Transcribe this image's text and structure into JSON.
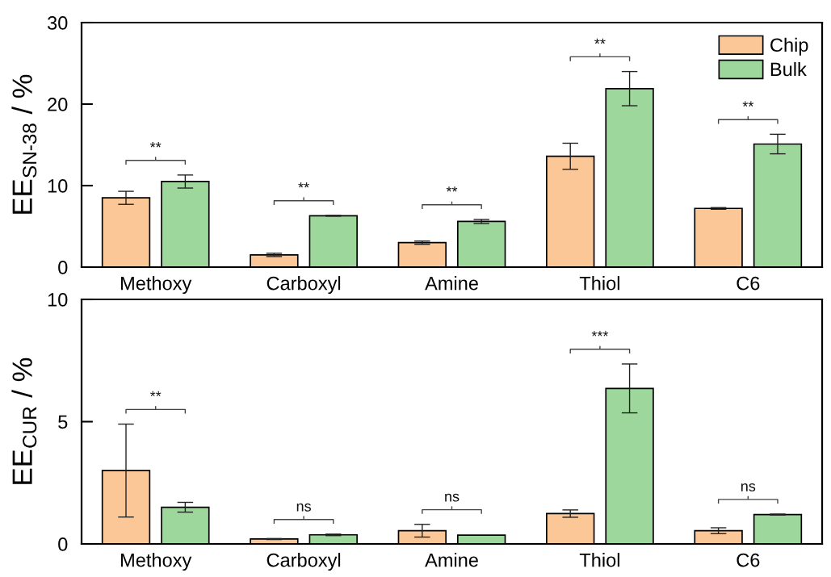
{
  "chart_data": [
    {
      "type": "bar",
      "ylabel": "EE$_{SN-38}$ / %",
      "categories": [
        "Methoxy",
        "Carboxyl",
        "Amine",
        "Thiol",
        "C6"
      ],
      "series": [
        {
          "name": "Chip",
          "color": "#fbc796",
          "values": [
            8.5,
            1.5,
            3.0,
            13.6,
            7.2
          ],
          "errors": [
            0.8,
            0.2,
            0.2,
            1.6,
            0.1
          ]
        },
        {
          "name": "Bulk",
          "color": "#9ed79b",
          "values": [
            10.5,
            6.3,
            5.6,
            21.9,
            15.1
          ],
          "errors": [
            0.8,
            0.05,
            0.25,
            2.1,
            1.2
          ]
        }
      ],
      "ylim": [
        0,
        30
      ],
      "yticks": [
        0,
        10,
        20,
        30
      ],
      "legend": "top right",
      "annotations": [
        "**",
        "**",
        "**",
        "**",
        "**"
      ]
    },
    {
      "type": "bar",
      "ylabel": "EE$_{CUR}$ / %",
      "categories": [
        "Methoxy",
        "Carboxyl",
        "Amine",
        "Thiol",
        "C6"
      ],
      "series": [
        {
          "color": "#fbc796",
          "values": [
            3.0,
            0.2,
            0.54,
            1.24,
            0.54
          ],
          "errors": [
            1.9,
            0.02,
            0.26,
            0.15,
            0.12
          ]
        },
        {
          "color": "#9ed79b",
          "values": [
            1.5,
            0.37,
            0.36,
            6.36,
            1.2
          ],
          "errors": [
            0.2,
            0.03,
            null,
            1.0,
            0.02
          ]
        }
      ],
      "ylim": [
        0,
        10
      ],
      "yticks": [
        0,
        5,
        10
      ],
      "annotations": [
        "**",
        "ns",
        "ns",
        "***",
        "ns"
      ]
    }
  ]
}
